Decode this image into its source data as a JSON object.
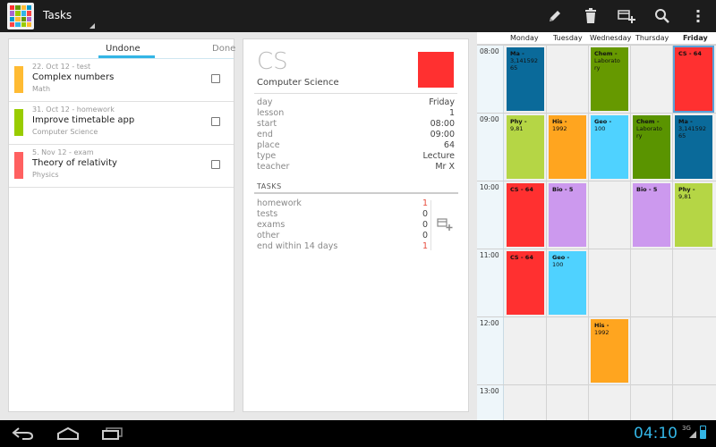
{
  "app": {
    "title": "Tasks",
    "icon_colors": [
      "#ff3030",
      "#669900",
      "#ffbb33",
      "#0099cc",
      "#aa66cc",
      "#99cc00",
      "#33b5e5",
      "#ff4444",
      "#0099cc",
      "#ffbb33",
      "#669900",
      "#aa66cc",
      "#ff4444",
      "#33b5e5",
      "#99cc00",
      "#ffbb33"
    ]
  },
  "toolbar": {
    "edit_icon": "pencil-icon",
    "delete_icon": "trash-icon",
    "add_icon": "add-task-icon",
    "search_icon": "search-icon",
    "menu_icon": "overflow-menu-icon"
  },
  "tabs": {
    "undone": "Undone",
    "done": "Done"
  },
  "tasks": [
    {
      "meta": "22. Oct 12 - test",
      "title": "Complex numbers",
      "subject": "Math",
      "color": "#ffbb33"
    },
    {
      "meta": "31. Oct 12 - homework",
      "title": "Improve timetable app",
      "subject": "Computer Science",
      "color": "#99cc00"
    },
    {
      "meta": "5. Nov 12 - exam",
      "title": "Theory of relativity",
      "subject": "Physics",
      "color": "#ff6060"
    }
  ],
  "detail": {
    "abbr": "CS",
    "name": "Computer Science",
    "color": "#ff3030",
    "fields": [
      {
        "label": "day",
        "value": "Friday"
      },
      {
        "label": "lesson",
        "value": "1"
      },
      {
        "label": "start",
        "value": "08:00"
      },
      {
        "label": "end",
        "value": "09:00"
      },
      {
        "label": "place",
        "value": "64"
      },
      {
        "label": "type",
        "value": "Lecture"
      },
      {
        "label": "teacher",
        "value": "Mr X"
      }
    ],
    "tasks_heading": "TASKS",
    "counts": [
      {
        "label": "homework",
        "value": "1",
        "red": true
      },
      {
        "label": "tests",
        "value": "0",
        "red": false
      },
      {
        "label": "exams",
        "value": "0",
        "red": false
      },
      {
        "label": "other",
        "value": "0",
        "red": false
      },
      {
        "label": "end within 14 days",
        "value": "1",
        "red": true
      }
    ]
  },
  "timetable": {
    "days": [
      "Monday",
      "Tuesday",
      "Wednesday",
      "Thursday",
      "Friday"
    ],
    "times": [
      "08:00",
      "09:00",
      "10:00",
      "11:00",
      "12:00",
      "13:00"
    ],
    "lessons": [
      {
        "day": 0,
        "slot": 0,
        "subject": "Ma -",
        "detail": "3,141592 65",
        "color": "#0a6a9a",
        "text": "#111"
      },
      {
        "day": 2,
        "slot": 0,
        "subject": "Chem -",
        "detail": "Laborato ry",
        "color": "#669900",
        "text": "#111"
      },
      {
        "day": 4,
        "slot": 0,
        "subject": "CS - 64",
        "detail": "",
        "color": "#ff3030",
        "text": "#111",
        "selected": true
      },
      {
        "day": 0,
        "slot": 1,
        "subject": "Phy -",
        "detail": "9,81",
        "color": "#b5d645",
        "text": "#111"
      },
      {
        "day": 1,
        "slot": 1,
        "subject": "His -",
        "detail": "1992",
        "color": "#ffa51f",
        "text": "#111"
      },
      {
        "day": 2,
        "slot": 1,
        "subject": "Geo -",
        "detail": "100",
        "color": "#4fd2ff",
        "text": "#111"
      },
      {
        "day": 3,
        "slot": 1,
        "subject": "Chem -",
        "detail": "Laborato ry",
        "color": "#5a9400",
        "text": "#111"
      },
      {
        "day": 4,
        "slot": 1,
        "subject": "Ma -",
        "detail": "3,141592 65",
        "color": "#0a6a9a",
        "text": "#111"
      },
      {
        "day": 0,
        "slot": 2,
        "subject": "CS - 64",
        "detail": "",
        "color": "#ff3030",
        "text": "#111"
      },
      {
        "day": 1,
        "slot": 2,
        "subject": "Bio - 5",
        "detail": "",
        "color": "#cc99ee",
        "text": "#111"
      },
      {
        "day": 3,
        "slot": 2,
        "subject": "Bio - 5",
        "detail": "",
        "color": "#cc99ee",
        "text": "#111"
      },
      {
        "day": 4,
        "slot": 2,
        "subject": "Phy -",
        "detail": "9,81",
        "color": "#b5d645",
        "text": "#111"
      },
      {
        "day": 0,
        "slot": 3,
        "subject": "CS - 64",
        "detail": "",
        "color": "#ff3030",
        "text": "#111"
      },
      {
        "day": 1,
        "slot": 3,
        "subject": "Geo -",
        "detail": "100",
        "color": "#4fd2ff",
        "text": "#111"
      },
      {
        "day": 2,
        "slot": 4,
        "subject": "His -",
        "detail": "1992",
        "color": "#ffa51f",
        "text": "#111"
      }
    ]
  },
  "navbar": {
    "back_icon": "back-icon",
    "home_icon": "home-icon",
    "recents_icon": "recent-apps-icon",
    "clock": "04:10",
    "network": "3G"
  }
}
